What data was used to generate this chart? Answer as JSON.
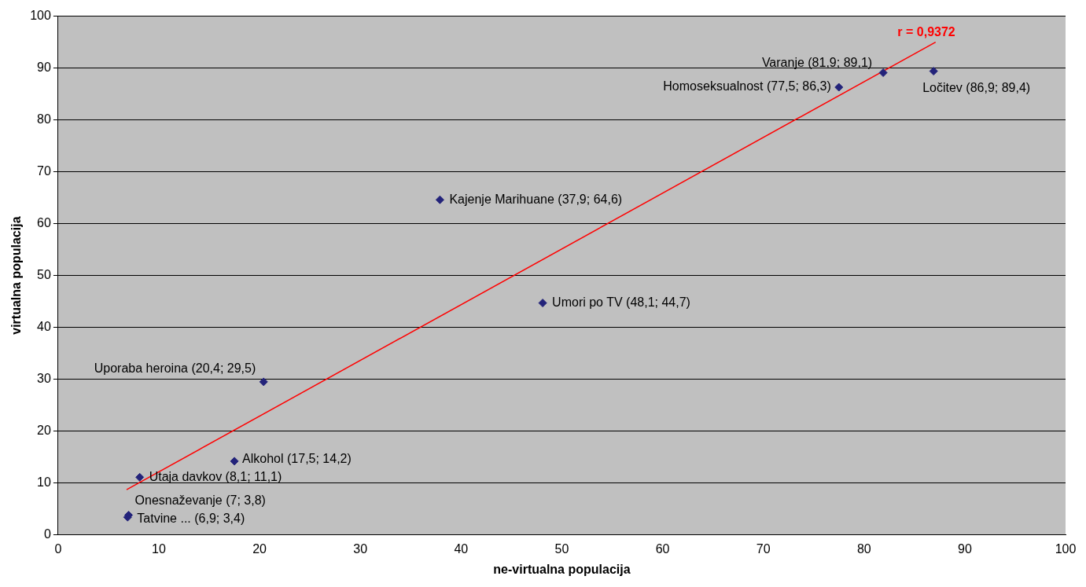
{
  "chart_data": {
    "type": "scatter",
    "xlabel": "ne-virtualna populacija",
    "ylabel": "virtualna populacija",
    "xlim": [
      0,
      100
    ],
    "xticks": [
      0,
      10,
      20,
      30,
      40,
      50,
      60,
      70,
      80,
      90,
      100
    ],
    "ylim": [
      0,
      100
    ],
    "yticks": [
      0,
      10,
      20,
      30,
      40,
      50,
      60,
      70,
      80,
      90,
      100
    ],
    "grid": "y",
    "legend": false,
    "series": [
      {
        "marker": "diamond",
        "color": "#23237a",
        "x": [
          6.9,
          7,
          8.1,
          17.5,
          20.4,
          48.1,
          37.9,
          77.5,
          81.9,
          86.9
        ],
        "values": [
          3.4,
          3.8,
          11.1,
          14.2,
          29.5,
          44.7,
          64.6,
          86.3,
          89.1,
          89.4
        ]
      },
      {
        "type": "line",
        "color": "#ff0000",
        "x": [
          6.8,
          87.1
        ],
        "values": [
          8.7,
          95.0
        ]
      }
    ],
    "annotations": [
      {
        "text": "Tatvine ... (6,9; 3,4)",
        "x": 6.9,
        "y": 3.4
      },
      {
        "text": "Onesnaževanje (7; 3,8)",
        "x": 7,
        "y": 3.8
      },
      {
        "text": "Utaja davkov (8,1; 11,1)",
        "x": 8.1,
        "y": 11.1
      },
      {
        "text": "Alkohol (17,5; 14,2)",
        "x": 17.5,
        "y": 14.2
      },
      {
        "text": "Uporaba heroina (20,4; 29,5)",
        "x": 20.4,
        "y": 29.5
      },
      {
        "text": "Umori po TV (48,1; 44,7)",
        "x": 48.1,
        "y": 44.7
      },
      {
        "text": "Kajenje Marihuane (37,9; 64,6)",
        "x": 37.9,
        "y": 64.6
      },
      {
        "text": "Homoseksualnost (77,5; 86,3)",
        "x": 77.5,
        "y": 86.3
      },
      {
        "text": "Varanje (81,9; 89,1)",
        "x": 81.9,
        "y": 89.1
      },
      {
        "text": "Ločitev (86,9; 89,4)",
        "x": 86.9,
        "y": 89.4
      },
      "r = 0,9372"
    ]
  }
}
